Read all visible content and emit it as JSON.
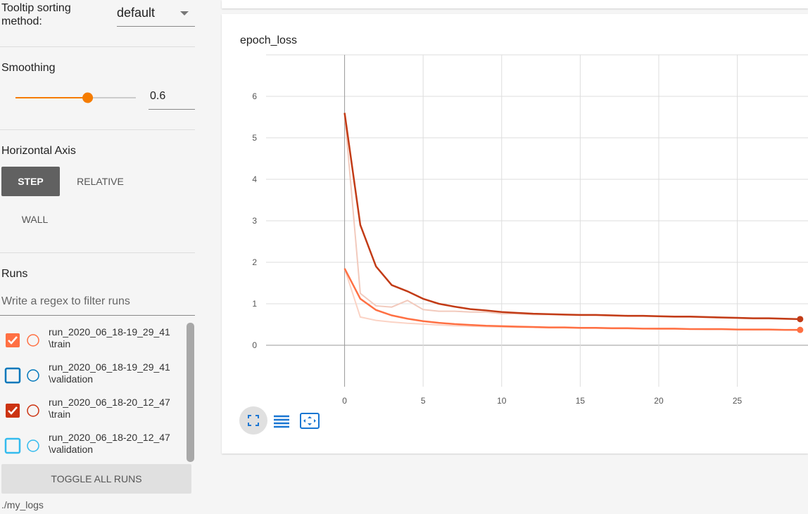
{
  "sidebar": {
    "tooltip_label": "Tooltip sorting method:",
    "tooltip_value": "default",
    "smoothing_label": "Smoothing",
    "smoothing_value": 0.6,
    "axis_label": "Horizontal Axis",
    "axis_options": [
      "STEP",
      "RELATIVE",
      "WALL"
    ],
    "axis_selected": 0,
    "runs_label": "Runs",
    "filter_placeholder": "Write a regex to filter runs",
    "runs": [
      {
        "name": "run_2020_06_18-19_29_41",
        "split": "\\train",
        "color": "#ff7043",
        "checked": true
      },
      {
        "name": "run_2020_06_18-19_29_41",
        "split": "\\validation",
        "color": "#0077bb",
        "checked": false
      },
      {
        "name": "run_2020_06_18-20_12_47",
        "split": "\\train",
        "color": "#cc3311",
        "checked": true
      },
      {
        "name": "run_2020_06_18-20_12_47",
        "split": "\\validation",
        "color": "#33bbee",
        "checked": false
      }
    ],
    "toggle_button": "TOGGLE ALL RUNS",
    "log_dir": "./my_logs"
  },
  "chart_data": {
    "type": "line",
    "title": "epoch_loss",
    "x": [
      0,
      1,
      2,
      3,
      4,
      5,
      6,
      7,
      8,
      9,
      10,
      11,
      12,
      13,
      14,
      15,
      16,
      17,
      18,
      19,
      20,
      21,
      22,
      23,
      24,
      25,
      26,
      27,
      28,
      29
    ],
    "series": [
      {
        "color": "#fbd3c5",
        "values": [
          1.85,
          0.68,
          0.6,
          0.56,
          0.53,
          0.51,
          0.49,
          0.47,
          0.46,
          0.45,
          0.44,
          0.43,
          0.43,
          0.42,
          0.42,
          0.41,
          0.41,
          0.4,
          0.4,
          0.4,
          0.39,
          0.39,
          0.39,
          0.38,
          0.38,
          0.38,
          0.37,
          0.37,
          0.37,
          0.36
        ]
      },
      {
        "color": "#f2cabd",
        "values": [
          5.6,
          1.25,
          0.95,
          0.92,
          1.08,
          0.86,
          0.82,
          0.82,
          0.8,
          0.8,
          0.76,
          0.76,
          0.74,
          0.74,
          0.73,
          0.72,
          0.72,
          0.71,
          0.7,
          0.7,
          0.69,
          0.68,
          0.68,
          0.67,
          0.66,
          0.65,
          0.64,
          0.64,
          0.63,
          0.62
        ]
      },
      {
        "color": "#ff7043",
        "values": [
          1.85,
          1.12,
          0.85,
          0.72,
          0.64,
          0.58,
          0.54,
          0.51,
          0.49,
          0.47,
          0.46,
          0.45,
          0.44,
          0.43,
          0.43,
          0.42,
          0.42,
          0.41,
          0.41,
          0.4,
          0.4,
          0.4,
          0.39,
          0.39,
          0.39,
          0.38,
          0.38,
          0.38,
          0.37,
          0.37
        ]
      },
      {
        "color": "#c23b16",
        "values": [
          5.6,
          2.9,
          1.9,
          1.45,
          1.3,
          1.12,
          1.0,
          0.93,
          0.87,
          0.84,
          0.8,
          0.78,
          0.76,
          0.75,
          0.74,
          0.73,
          0.73,
          0.72,
          0.71,
          0.71,
          0.7,
          0.69,
          0.69,
          0.68,
          0.67,
          0.66,
          0.65,
          0.65,
          0.64,
          0.63
        ]
      }
    ],
    "xlim": [
      -5,
      29.5
    ],
    "ylim": [
      -1,
      7
    ],
    "xticks": [
      0,
      5,
      10,
      15,
      20,
      25
    ],
    "yticks": [
      0,
      1,
      2,
      3,
      4,
      5,
      6
    ],
    "grid": true
  }
}
